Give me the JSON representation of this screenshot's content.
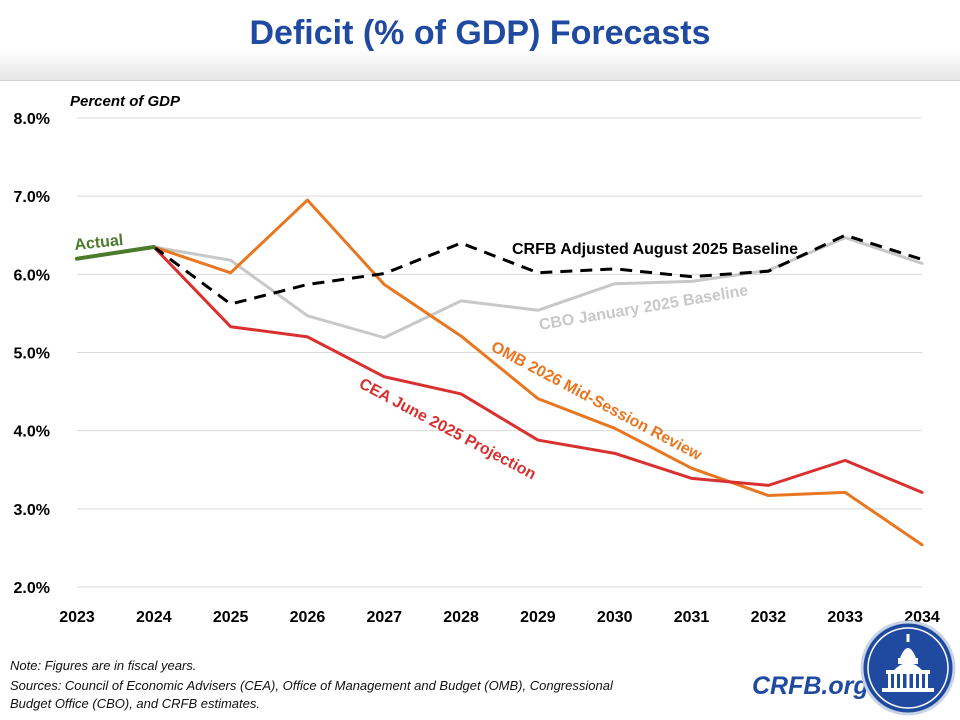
{
  "header": {
    "title": "Deficit (% of GDP) Forecasts"
  },
  "chart_data": {
    "type": "line",
    "title": "Deficit (% of GDP) Forecasts",
    "ylabel": "Percent of GDP",
    "xlabel": "",
    "x": [
      2023,
      2024,
      2025,
      2026,
      2027,
      2028,
      2029,
      2030,
      2031,
      2032,
      2033,
      2034
    ],
    "x_tick_labels": [
      "2023",
      "2024",
      "2025",
      "2026",
      "2027",
      "2028",
      "2029",
      "2030",
      "2031",
      "2032",
      "2033",
      "2034"
    ],
    "ylim": [
      2.0,
      8.0
    ],
    "y_ticks": [
      2.0,
      3.0,
      4.0,
      5.0,
      6.0,
      7.0,
      8.0
    ],
    "y_tick_labels": [
      "2.0%",
      "3.0%",
      "4.0%",
      "5.0%",
      "6.0%",
      "7.0%",
      "8.0%"
    ],
    "grid": "horizontal",
    "series": [
      {
        "name": "Actual",
        "color": "#4a7a2a",
        "dash": false,
        "x": [
          2023,
          2024
        ],
        "values": [
          6.2,
          6.35
        ]
      },
      {
        "name": "CBO January 2025 Baseline",
        "color": "#c8c8c8",
        "dash": false,
        "x": [
          2024,
          2025,
          2026,
          2027,
          2028,
          2029,
          2030,
          2031,
          2032,
          2033,
          2034
        ],
        "values": [
          6.35,
          6.18,
          5.47,
          5.19,
          5.66,
          5.54,
          5.88,
          5.91,
          6.05,
          6.47,
          6.14
        ]
      },
      {
        "name": "OMB 2026 Mid-Session Review",
        "color": "#e87722",
        "dash": false,
        "x": [
          2024,
          2025,
          2026,
          2027,
          2028,
          2029,
          2030,
          2031,
          2032,
          2033,
          2034
        ],
        "values": [
          6.35,
          6.02,
          6.95,
          5.87,
          5.21,
          4.41,
          4.03,
          3.52,
          3.17,
          3.21,
          2.54
        ]
      },
      {
        "name": "CEA June 2025 Projection",
        "color": "#d93030",
        "dash": false,
        "x": [
          2024,
          2025,
          2026,
          2027,
          2028,
          2029,
          2030,
          2031,
          2032,
          2033,
          2034
        ],
        "values": [
          6.35,
          5.33,
          5.2,
          4.69,
          4.47,
          3.88,
          3.71,
          3.39,
          3.3,
          3.62,
          3.21
        ]
      },
      {
        "name": "CRFB Adjusted August 2025 Baseline",
        "color": "#000000",
        "dash": true,
        "x": [
          2024,
          2025,
          2026,
          2027,
          2028,
          2029,
          2030,
          2031,
          2032,
          2033,
          2034
        ],
        "values": [
          6.35,
          5.62,
          5.87,
          6.01,
          6.4,
          6.02,
          6.07,
          5.97,
          6.04,
          6.5,
          6.19
        ]
      }
    ]
  },
  "footnotes": {
    "note": "Note: Figures are in fiscal years.",
    "sources_line1": "Sources: Council of Economic Advisers (CEA), Office of Management and Budget (OMB), Congressional",
    "sources_line2": "Budget Office (CBO), and CRFB estimates."
  },
  "brand": {
    "site": "CRFB.org",
    "logo_icon": "capitol-dome-icon"
  }
}
